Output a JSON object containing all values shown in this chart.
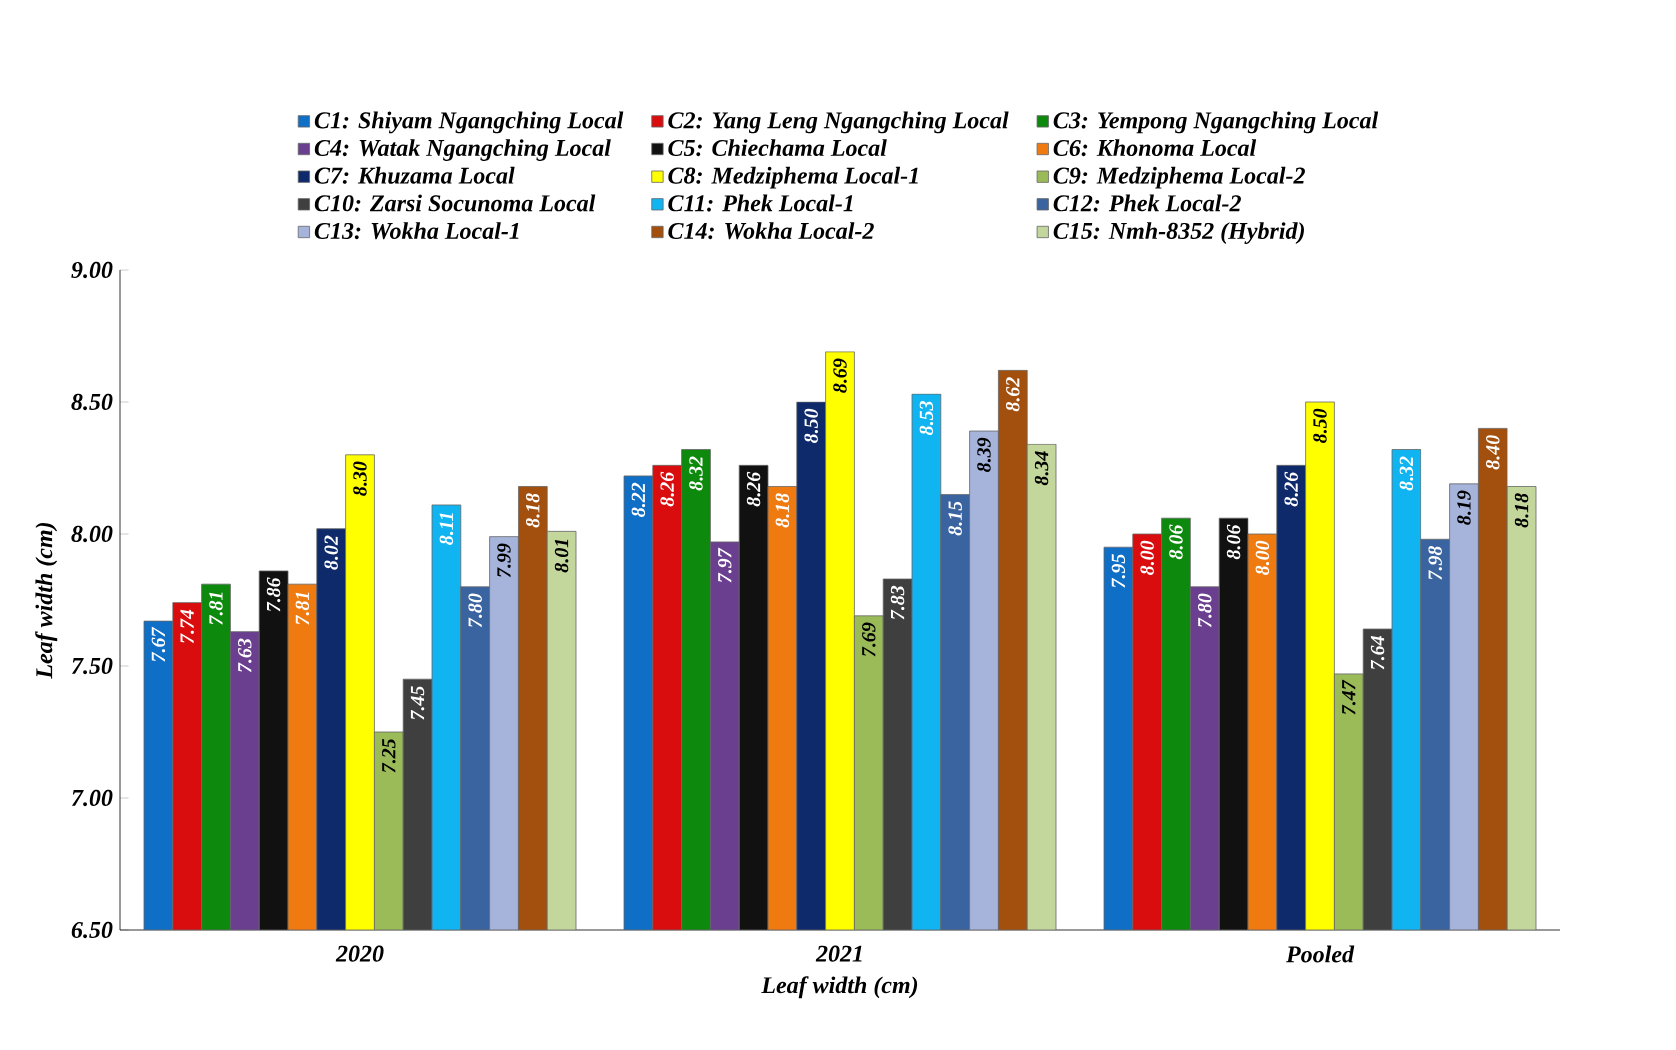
{
  "chart_data": {
    "type": "bar",
    "xlabel": "Leaf width (cm)",
    "ylabel": "Leaf width (cm)",
    "categories": [
      "2020",
      "2021",
      "Pooled"
    ],
    "ylim": [
      6.5,
      9.0
    ],
    "yticks": [
      {
        "value": 6.5,
        "label": "6.50"
      },
      {
        "value": 7.0,
        "label": "7.00"
      },
      {
        "value": 7.5,
        "label": "7.50"
      },
      {
        "value": 8.0,
        "label": "8.00"
      },
      {
        "value": 8.5,
        "label": "8.50"
      },
      {
        "value": 9.0,
        "label": "9.00"
      }
    ],
    "legend": "top",
    "grid": false,
    "series": [
      {
        "name": "C1: Shiyam Ngangching Local",
        "color": "#0f6fc6",
        "values": [
          7.67,
          8.22,
          7.95
        ],
        "value_labels": [
          "7.67",
          "8.22",
          "7.95"
        ]
      },
      {
        "name": "C2: Yang Leng Ngangching Local",
        "color": "#d90d0d",
        "values": [
          7.74,
          8.26,
          8.0
        ],
        "value_labels": [
          "7.74",
          "8.26",
          "8.00"
        ]
      },
      {
        "name": "C3: Yempong Ngangching Local",
        "color": "#0d8a0d",
        "values": [
          7.81,
          8.32,
          8.06
        ],
        "value_labels": [
          "7.81",
          "8.32",
          "8.06"
        ]
      },
      {
        "name": "C4: Watak Ngangching Local",
        "color": "#6b3f8f",
        "values": [
          7.63,
          7.97,
          7.8
        ],
        "value_labels": [
          "7.63",
          "7.97",
          "7.80"
        ]
      },
      {
        "name": "C5: Chiechama Local",
        "color": "#111111",
        "values": [
          7.86,
          8.26,
          8.06
        ],
        "value_labels": [
          "7.86",
          "8.26",
          "8.06"
        ]
      },
      {
        "name": "C6: Khonoma Local",
        "color": "#ef7a10",
        "values": [
          7.81,
          8.18,
          8.0
        ],
        "value_labels": [
          "7.81",
          "8.18",
          "8.00"
        ]
      },
      {
        "name": "C7: Khuzama Local",
        "color": "#0e2a6b",
        "values": [
          8.02,
          8.5,
          8.26
        ],
        "value_labels": [
          "8.02",
          "8.50",
          "8.26"
        ]
      },
      {
        "name": "C8: Medziphema Local-1",
        "color": "#ffff00",
        "values": [
          8.3,
          8.69,
          8.5
        ],
        "value_labels": [
          "8.30",
          "8.69",
          "8.50"
        ]
      },
      {
        "name": "C9: Medziphema Local-2",
        "color": "#9bbb59",
        "values": [
          7.25,
          7.69,
          7.47
        ],
        "value_labels": [
          "7.25",
          "7.69",
          "7.47"
        ]
      },
      {
        "name": "C10: Zarsi Socunoma Local",
        "color": "#3f3f3f",
        "values": [
          7.45,
          7.83,
          7.64
        ],
        "value_labels": [
          "7.45",
          "7.83",
          "7.64"
        ]
      },
      {
        "name": "C11: Phek Local-1",
        "color": "#10b4f0",
        "values": [
          8.11,
          8.53,
          8.32
        ],
        "value_labels": [
          "8.11",
          "8.53",
          "8.32"
        ]
      },
      {
        "name": "C12: Phek Local-2",
        "color": "#3a64a0",
        "values": [
          7.8,
          8.15,
          7.98
        ],
        "value_labels": [
          "7.80",
          "8.15",
          "7.98"
        ]
      },
      {
        "name": "C13: Wokha Local-1",
        "color": "#a6b4dc",
        "values": [
          7.99,
          8.39,
          8.19
        ],
        "value_labels": [
          "7.99",
          "8.39",
          "8.19"
        ]
      },
      {
        "name": "C14: Wokha Local-2",
        "color": "#a3500f",
        "values": [
          8.18,
          8.62,
          8.4
        ],
        "value_labels": [
          "8.18",
          "8.62",
          "8.40"
        ]
      },
      {
        "name": "C15: Nmh-8352 (Hybrid)",
        "color": "#c3d69b",
        "values": [
          8.01,
          8.34,
          8.18
        ],
        "value_labels": [
          "8.01",
          "8.34",
          "8.18"
        ]
      }
    ]
  }
}
